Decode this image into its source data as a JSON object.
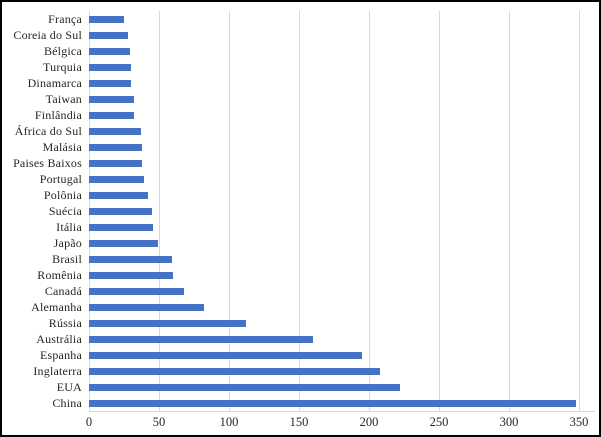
{
  "chart_data": {
    "type": "bar",
    "orientation": "horizontal",
    "title": "",
    "xlabel": "",
    "ylabel": "",
    "categories": [
      "França",
      "Coreia do Sul",
      "Bélgica",
      "Turquia",
      "Dinamarca",
      "Taiwan",
      "Finlândia",
      "África do Sul",
      "Malásia",
      "Paises Baixos",
      "Portugal",
      "Polônia",
      "Suécia",
      "Itália",
      "Japão",
      "Brasil",
      "Romênia",
      "Canadá",
      "Alemanha",
      "Rússia",
      "Austrália",
      "Espanha",
      "Inglaterra",
      "EUA",
      "China"
    ],
    "values": [
      25,
      28,
      29,
      30,
      30,
      32,
      32,
      37,
      38,
      38,
      39,
      42,
      45,
      46,
      49,
      59,
      60,
      68,
      82,
      112,
      160,
      195,
      208,
      222,
      348
    ],
    "xlim": [
      0,
      350
    ],
    "xticks": [
      0,
      50,
      100,
      150,
      200,
      250,
      300,
      350
    ],
    "grid": "vertical-only",
    "legend": "none",
    "colors": {
      "bar": "#4472C4",
      "gridline": "#D9D9D9",
      "axis_text": "#262626",
      "background": "#FFFFFF",
      "frame_border": "#000000"
    }
  }
}
